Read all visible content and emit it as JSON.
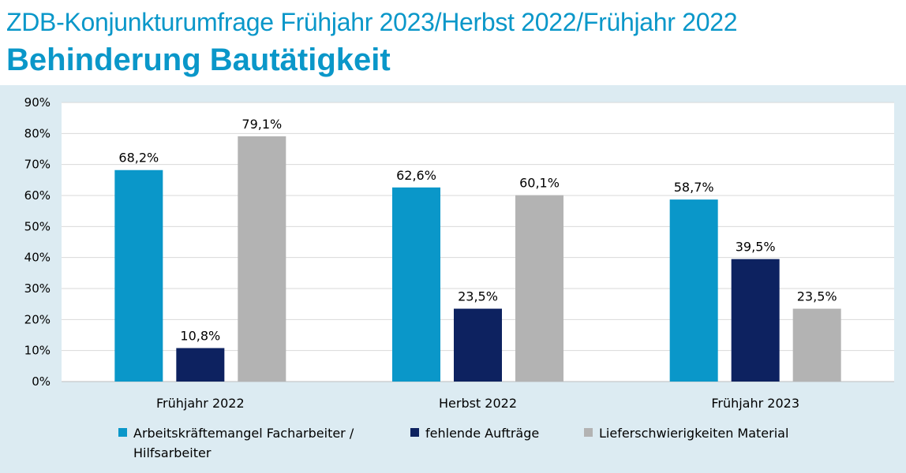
{
  "header": {
    "title": "ZDB-Konjunkturumfrage Frühjahr 2023/Herbst 2022/Frühjahr 2022",
    "subtitle": "Behinderung Bautätigkeit"
  },
  "chart_data": {
    "type": "bar",
    "title": "",
    "xlabel": "",
    "ylabel": "",
    "categories": [
      "Frühjahr 2022",
      "Herbst 2022",
      "Frühjahr 2023"
    ],
    "ylim": [
      0,
      90
    ],
    "yticks": [
      "0%",
      "10%",
      "20%",
      "30%",
      "40%",
      "50%",
      "60%",
      "70%",
      "80%",
      "90%"
    ],
    "grid": true,
    "legend_position": "bottom",
    "series": [
      {
        "name": "Arbeitskräftemangel Facharbeiter / Hilfsarbeiter",
        "legend_lines": [
          "Arbeitskräftemangel Facharbeiter /",
          "Hilfsarbeiter"
        ],
        "color": "#0a97c9",
        "values": [
          68.2,
          62.6,
          58.7
        ],
        "labels": [
          "68,2%",
          "62,6%",
          "58,7%"
        ]
      },
      {
        "name": "fehlende Aufträge",
        "legend_lines": [
          "fehlende Aufträge"
        ],
        "color": "#0d2260",
        "values": [
          10.8,
          23.5,
          39.5
        ],
        "labels": [
          "10,8%",
          "23,5%",
          "39,5%"
        ]
      },
      {
        "name": "Lieferschwierigkeiten Material",
        "legend_lines": [
          "Lieferschwierigkeiten Material"
        ],
        "color": "#b3b3b3",
        "values": [
          79.1,
          60.1,
          23.5
        ],
        "labels": [
          "79,1%",
          "60,1%",
          "23,5%"
        ]
      }
    ]
  }
}
